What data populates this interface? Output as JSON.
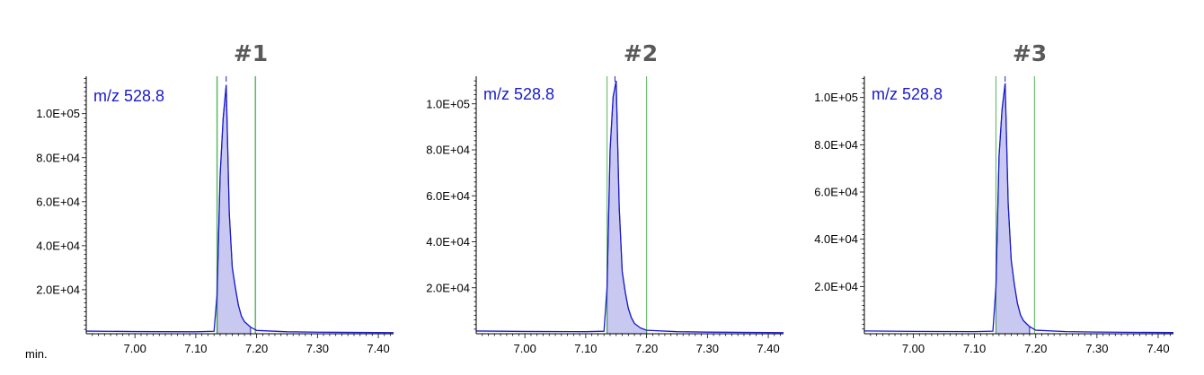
{
  "colors": {
    "trace": "#1a1acc",
    "fill": "#c8c8f0",
    "integration_line": "#4caf50",
    "axis": "#000000",
    "title": "#595959"
  },
  "chart_data": [
    {
      "type": "line",
      "title": "#1",
      "trace_label": "m/z 528.8",
      "x_unit_label": "min.",
      "xlim": [
        6.92,
        7.425
      ],
      "ylim": [
        0,
        117000
      ],
      "x_ticks": [
        7.0,
        7.1,
        7.2,
        7.3,
        7.4
      ],
      "x_tick_labels": [
        "7.00",
        "7.10",
        "7.20",
        "7.30",
        "7.40"
      ],
      "y_ticks": [
        20000,
        40000,
        60000,
        80000,
        100000
      ],
      "y_tick_labels": [
        "2.0E+04",
        "4.0E+04",
        "6.0E+04",
        "8.0E+04",
        "1.0E+05"
      ],
      "integration_bounds": [
        7.135,
        7.198
      ],
      "integration_marker": 7.15,
      "x": [
        6.92,
        7.0,
        7.1,
        7.13,
        7.135,
        7.14,
        7.145,
        7.15,
        7.155,
        7.16,
        7.165,
        7.17,
        7.175,
        7.18,
        7.19,
        7.2,
        7.25,
        7.3,
        7.425
      ],
      "y": [
        1200,
        1000,
        900,
        1100,
        18000,
        72000,
        98000,
        113000,
        55000,
        30000,
        21000,
        13000,
        8000,
        5500,
        3000,
        1500,
        900,
        700,
        500
      ],
      "grid": false
    },
    {
      "type": "line",
      "title": "#2",
      "trace_label": "m/z 528.8",
      "xlim": [
        6.92,
        7.425
      ],
      "ylim": [
        0,
        112000
      ],
      "x_ticks": [
        7.0,
        7.1,
        7.2,
        7.3,
        7.4
      ],
      "x_tick_labels": [
        "7.00",
        "7.10",
        "7.20",
        "7.30",
        "7.40"
      ],
      "y_ticks": [
        20000,
        40000,
        60000,
        80000,
        100000
      ],
      "y_tick_labels": [
        "2.0E+04",
        "4.0E+04",
        "6.0E+04",
        "8.0E+04",
        "1.0E+05"
      ],
      "integration_bounds": [
        7.135,
        7.2
      ],
      "integration_marker": 7.148,
      "x": [
        6.92,
        7.0,
        7.1,
        7.13,
        7.135,
        7.14,
        7.145,
        7.15,
        7.155,
        7.16,
        7.165,
        7.17,
        7.175,
        7.18,
        7.19,
        7.2,
        7.25,
        7.3,
        7.425
      ],
      "y": [
        1200,
        1000,
        900,
        1100,
        20000,
        80000,
        103000,
        110000,
        55000,
        27000,
        18000,
        11000,
        7000,
        4500,
        2500,
        1500,
        900,
        700,
        500
      ],
      "grid": false
    },
    {
      "type": "line",
      "title": "#3",
      "trace_label": "m/z 528.8",
      "xlim": [
        6.92,
        7.425
      ],
      "ylim": [
        0,
        109000
      ],
      "x_ticks": [
        7.0,
        7.1,
        7.2,
        7.3,
        7.4
      ],
      "x_tick_labels": [
        "7.00",
        "7.10",
        "7.20",
        "7.30",
        "7.40"
      ],
      "y_ticks": [
        20000,
        40000,
        60000,
        80000,
        100000
      ],
      "y_tick_labels": [
        "2.0E+04",
        "4.0E+04",
        "6.0E+04",
        "8.0E+04",
        "1.0E+05"
      ],
      "integration_bounds": [
        7.135,
        7.198
      ],
      "integration_marker": 7.15,
      "x": [
        6.92,
        7.0,
        7.1,
        7.13,
        7.135,
        7.14,
        7.145,
        7.15,
        7.155,
        7.16,
        7.165,
        7.17,
        7.175,
        7.18,
        7.19,
        7.2,
        7.25,
        7.3,
        7.425
      ],
      "y": [
        1200,
        1000,
        900,
        1100,
        20000,
        75000,
        95000,
        106000,
        55000,
        31000,
        21000,
        13000,
        8000,
        5500,
        3000,
        1500,
        900,
        700,
        500
      ],
      "grid": false
    }
  ]
}
